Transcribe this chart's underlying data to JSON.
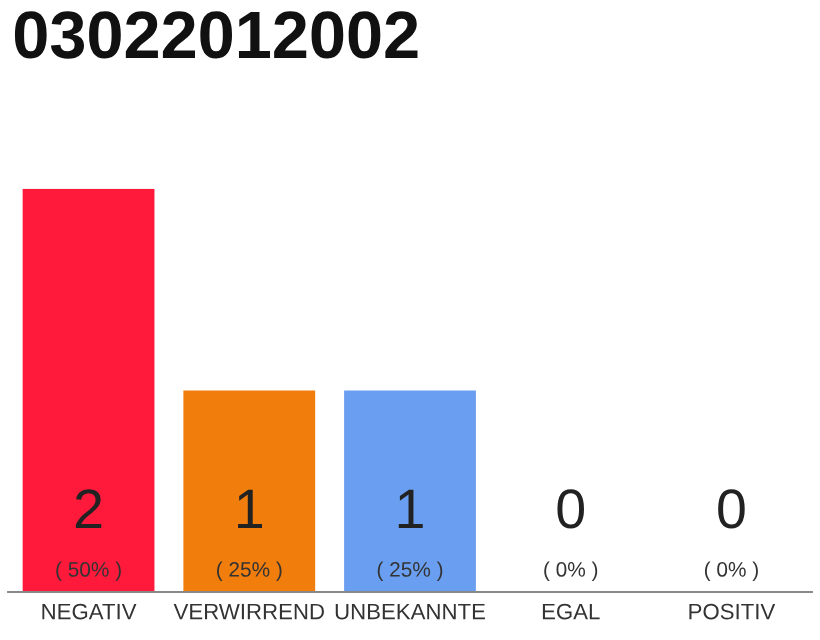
{
  "chart_data": {
    "type": "bar",
    "title": "03022012002",
    "categories": [
      "NEGATIV",
      "VERWIRREND",
      "UNBEKANNTE",
      "EGAL",
      "POSITIV"
    ],
    "values": [
      2,
      1,
      1,
      0,
      0
    ],
    "colors": [
      "#ff1a3c",
      "#f07d0c",
      "#6a9ef0",
      "#b0b0b0",
      "#b0b0b0"
    ],
    "data_labels": true,
    "annotations": [
      {
        "text": "( 50% )",
        "x": "NEGATIV",
        "y": 0
      },
      {
        "text": "( 25% )",
        "x": "VERWIRREND",
        "y": 0
      },
      {
        "text": "( 25% )",
        "x": "UNBEKANNTE",
        "y": 0
      },
      {
        "text": "( 0% )",
        "x": "EGAL",
        "y": 0
      },
      {
        "text": "( 0% )",
        "x": "POSITIV",
        "y": 0
      }
    ],
    "ylim": [
      0,
      2
    ],
    "grid": false,
    "legend": false
  }
}
